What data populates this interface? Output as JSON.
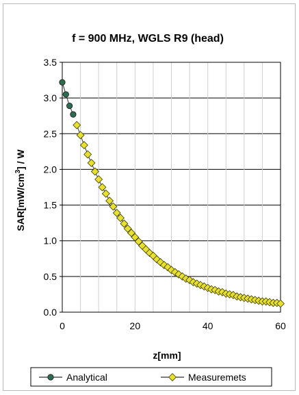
{
  "chart_data": {
    "type": "line",
    "title": "f = 900 MHz, WGLS R9 (head)",
    "xlabel": "z[mm]",
    "ylabel": "SAR[mW/cm3] / W",
    "ylabel_parts": {
      "pre": "SAR[mW/cm",
      "sup": "3",
      "post": "] / W"
    },
    "xlim": [
      0,
      60
    ],
    "ylim": [
      0,
      3.5
    ],
    "xticks": [
      "0",
      "20",
      "40",
      "60"
    ],
    "yticks": [
      "0.0",
      "0.5",
      "1.0",
      "1.5",
      "2.0",
      "2.5",
      "3.0",
      "3.5"
    ],
    "grid": true,
    "legend_position": "bottom",
    "series": [
      {
        "name": "Analytical",
        "color": "#2f6b4f",
        "marker": "circle",
        "x": [
          0,
          1,
          2,
          3
        ],
        "y": [
          3.22,
          3.05,
          2.89,
          2.77
        ]
      },
      {
        "name": "Measuremets",
        "color": "#e8e030",
        "marker": "diamond",
        "x": [
          4,
          5,
          6,
          7,
          8,
          9,
          10,
          11,
          12,
          13,
          14,
          15,
          16,
          17,
          18,
          19,
          20,
          21,
          22,
          23,
          24,
          25,
          26,
          27,
          28,
          29,
          30,
          31,
          32,
          33,
          34,
          35,
          36,
          37,
          38,
          39,
          40,
          41,
          42,
          43,
          44,
          45,
          46,
          47,
          48,
          49,
          50,
          51,
          52,
          53,
          54,
          55,
          56,
          57,
          58,
          59,
          60
        ],
        "y": [
          2.62,
          2.48,
          2.34,
          2.21,
          2.09,
          1.97,
          1.86,
          1.75,
          1.66,
          1.56,
          1.48,
          1.39,
          1.32,
          1.24,
          1.17,
          1.11,
          1.05,
          0.99,
          0.93,
          0.88,
          0.83,
          0.79,
          0.74,
          0.7,
          0.66,
          0.63,
          0.59,
          0.56,
          0.53,
          0.5,
          0.47,
          0.45,
          0.42,
          0.4,
          0.38,
          0.36,
          0.34,
          0.32,
          0.31,
          0.29,
          0.28,
          0.26,
          0.25,
          0.24,
          0.22,
          0.21,
          0.2,
          0.19,
          0.18,
          0.17,
          0.16,
          0.15,
          0.15,
          0.14,
          0.13,
          0.13,
          0.12
        ]
      }
    ]
  }
}
